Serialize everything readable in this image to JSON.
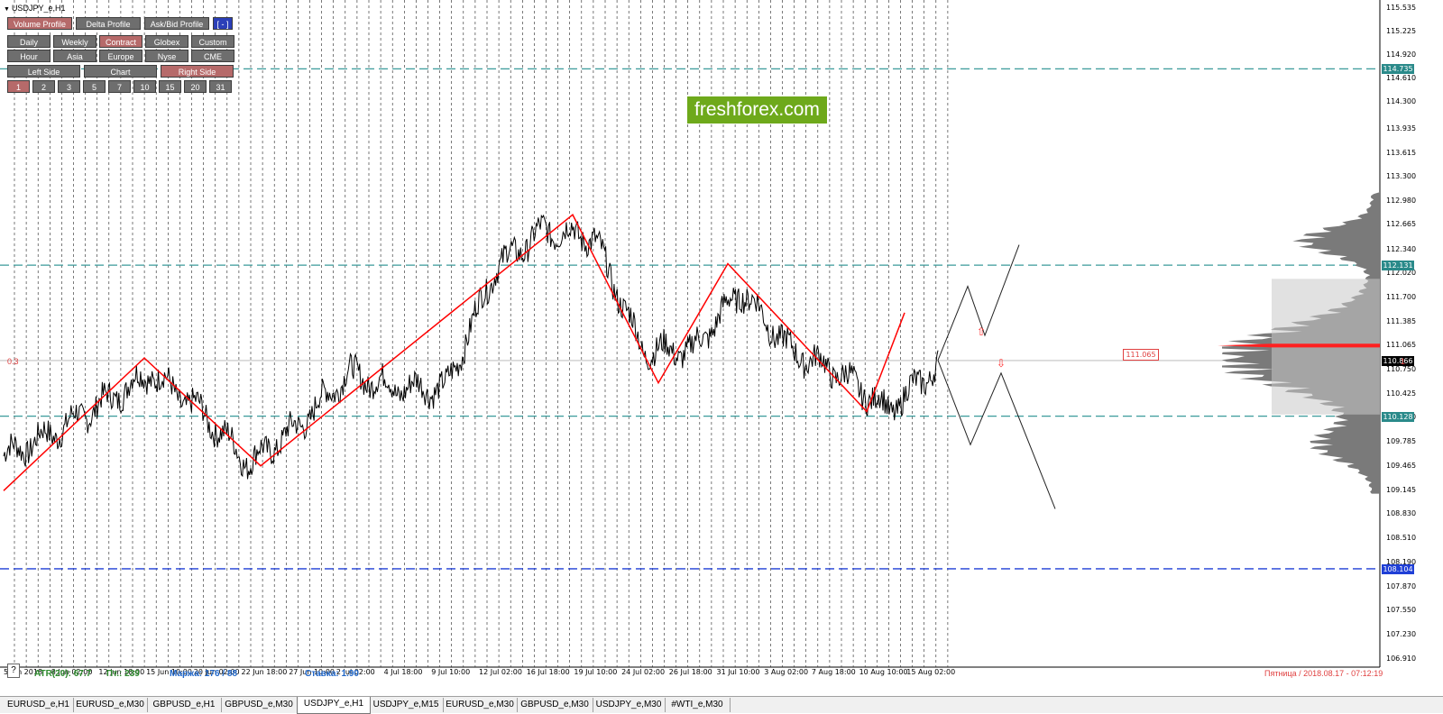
{
  "window": {
    "title": "USDJPY_e,H1"
  },
  "panel": {
    "row1": [
      {
        "label": "Volume Profile",
        "active": true
      },
      {
        "label": "Delta Profile",
        "active": false
      },
      {
        "label": "Ask/Bid Profile",
        "active": false
      },
      {
        "label": "[ - ]",
        "active": false,
        "blue": true
      }
    ],
    "row2": [
      {
        "label": "Daily",
        "active": false
      },
      {
        "label": "Weekly",
        "active": false
      },
      {
        "label": "Contract",
        "active": true
      },
      {
        "label": "Globex",
        "active": false
      },
      {
        "label": "Custom",
        "active": false
      }
    ],
    "row3": [
      {
        "label": "Hour",
        "active": false
      },
      {
        "label": "Asia",
        "active": false
      },
      {
        "label": "Europe",
        "active": false
      },
      {
        "label": "Nyse",
        "active": false
      },
      {
        "label": "CME",
        "active": false
      }
    ],
    "row4": [
      {
        "label": "Left Side",
        "active": false
      },
      {
        "label": "Chart",
        "active": false
      },
      {
        "label": "Right Side",
        "active": true
      }
    ],
    "row5": [
      {
        "label": "1",
        "active": true
      },
      {
        "label": "2",
        "active": false
      },
      {
        "label": "3",
        "active": false
      },
      {
        "label": "5",
        "active": false
      },
      {
        "label": "7",
        "active": false
      },
      {
        "label": "10",
        "active": false
      },
      {
        "label": "15",
        "active": false
      },
      {
        "label": "20",
        "active": false
      },
      {
        "label": "31",
        "active": false
      }
    ]
  },
  "logo": {
    "text": "freshforex.com",
    "color": "#6ea91b"
  },
  "price_axis": {
    "ticks": [
      "115.535",
      "115.225",
      "114.920",
      "114.610",
      "114.300",
      "113.935",
      "113.615",
      "113.300",
      "112.980",
      "112.665",
      "112.340",
      "112.020",
      "111.700",
      "111.385",
      "111.065",
      "110.750",
      "110.425",
      "110.110",
      "109.785",
      "109.465",
      "109.145",
      "108.830",
      "108.510",
      "108.190",
      "107.870",
      "107.550",
      "107.230",
      "106.910"
    ],
    "markers": [
      {
        "price": "114.735",
        "color": "#2a8a8a"
      },
      {
        "price": "112.131",
        "color": "#2a8a8a"
      },
      {
        "price": "110.866",
        "color": "#000000"
      },
      {
        "price": "110.128",
        "color": "#2a8a8a"
      },
      {
        "price": "108.104",
        "color": "#1f3fd6"
      }
    ],
    "poc_label": "111.065",
    "min": 106.8,
    "max": 115.6
  },
  "time_axis": {
    "labels": [
      "5 Jun 2018",
      "8 Jun 02:00",
      "12 Jun 18:00",
      "15 Jun 10:00",
      "20 Jun 02:00",
      "22 Jun 18:00",
      "27 Jun 10:00",
      "2 Jul 02:00",
      "4 Jul 18:00",
      "9 Jul 10:00",
      "12 Jul 02:00",
      "16 Jul 18:00",
      "19 Jul 10:00",
      "24 Jul 02:00",
      "26 Jul 18:00",
      "31 Jul 10:00",
      "3 Aug 02:00",
      "7 Aug 18:00",
      "10 Aug 10:00",
      "15 Aug 02:00"
    ]
  },
  "status": {
    "atr": "ATR(20): 67.7",
    "pt": "Пт.: 239",
    "marzha": "Маржа: 176 / 88",
    "stavka": "Ставка: 1.90",
    "datetime": "Пятница  /  2018.08.17  -  07:12:19",
    "left_marker": "0.3",
    "right_marker": "1",
    "question": "?"
  },
  "chart_data": {
    "type": "line",
    "symbol": "USDJPY_e",
    "timeframe": "H1",
    "x": [
      "5 Jun 2018",
      "8 Jun 02:00",
      "12 Jun 18:00",
      "15 Jun 10:00",
      "20 Jun 02:00",
      "22 Jun 18:00",
      "27 Jun 10:00",
      "2 Jul 02:00",
      "4 Jul 18:00",
      "9 Jul 10:00",
      "12 Jul 02:00",
      "16 Jul 18:00",
      "19 Jul 10:00",
      "24 Jul 02:00",
      "26 Jul 18:00",
      "31 Jul 10:00",
      "3 Aug 02:00",
      "7 Aug 18:00",
      "10 Aug 10:00",
      "15 Aug 02:00"
    ],
    "series": [
      {
        "values": [
          109.6,
          109.9,
          110.3,
          110.7,
          110.2,
          109.5,
          110.0,
          110.7,
          110.5,
          110.5,
          112.1,
          112.6,
          112.5,
          111.0,
          111.0,
          111.8,
          111.0,
          110.7,
          110.2,
          110.8
        ]
      }
    ],
    "zigzag": [
      109.14,
      110.9,
      109.47,
      112.8,
      110.57,
      112.15,
      110.19,
      111.5
    ],
    "levels": [
      114.735,
      112.131,
      110.866,
      110.128,
      108.104
    ],
    "projections": {
      "bullish": [
        110.87,
        111.85,
        111.2,
        112.4
      ],
      "bearish": [
        110.87,
        109.75,
        110.7,
        108.9
      ]
    },
    "volume_profile_poc": 111.065,
    "ylim": [
      106.8,
      115.6
    ]
  },
  "tabs": [
    {
      "label": "EURUSD_e,H1",
      "active": false
    },
    {
      "label": "EURUSD_e,M30",
      "active": false
    },
    {
      "label": "GBPUSD_e,H1",
      "active": false
    },
    {
      "label": "GBPUSD_e,M30",
      "active": false
    },
    {
      "label": "USDJPY_e,H1",
      "active": true
    },
    {
      "label": "USDJPY_e,M15",
      "active": false
    },
    {
      "label": "EURUSD_e,M30",
      "active": false
    },
    {
      "label": "GBPUSD_e,M30",
      "active": false
    },
    {
      "label": "USDJPY_e,M30",
      "active": false
    },
    {
      "label": "#WTI_e,M30",
      "active": false
    }
  ]
}
